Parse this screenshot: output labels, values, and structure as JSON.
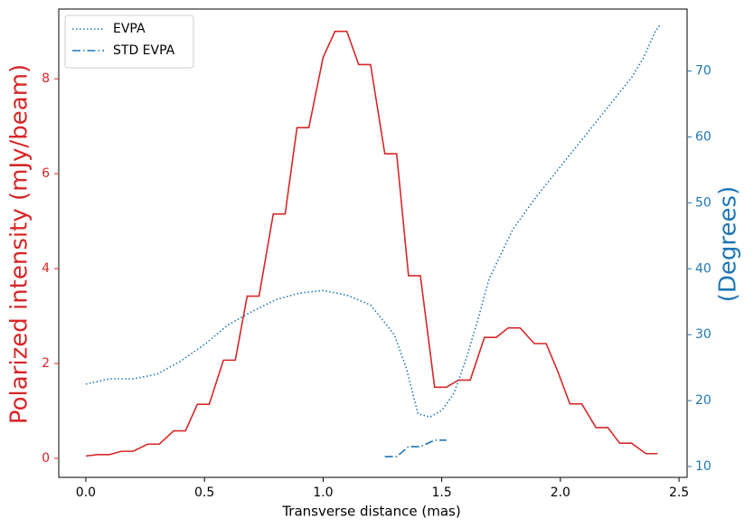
{
  "chart_data": {
    "type": "line",
    "xlabel": "Transverse distance (mas)",
    "ylabel": "Polarized intensity (mJy/beam)",
    "y2label": "(Degrees)",
    "ylabel_color": "#d62728",
    "y2label_color": "#1f77b4",
    "xlim": [
      -0.114,
      2.534
    ],
    "xticks": [
      {
        "value": 0,
        "label": "0.0"
      },
      0.5,
      {
        "value": 1,
        "label": "1.0"
      },
      1.5,
      {
        "value": 2,
        "label": "2.0"
      },
      2.5
    ],
    "ylim": [
      -0.4,
      9.47
    ],
    "yticks": [
      0,
      2,
      4,
      6,
      8
    ],
    "y2lim": [
      8.35,
      79.4
    ],
    "y2ticks": [
      10,
      20,
      30,
      40,
      50,
      60,
      70
    ],
    "legend": "upper left",
    "series": [
      {
        "color": "#d62728",
        "linestyle": "solid",
        "x": [
          0,
          0.05,
          0.1,
          0.15,
          0.2,
          0.26,
          0.31,
          0.37,
          0.42,
          0.47,
          0.52,
          0.58,
          0.63,
          0.68,
          0.73,
          0.79,
          0.84,
          0.89,
          0.94,
          1.0,
          1.05,
          1.1,
          1.15,
          1.2,
          1.26,
          1.31,
          1.36,
          1.41,
          1.47,
          1.52,
          1.57,
          1.62,
          1.68,
          1.73,
          1.78,
          1.83,
          1.89,
          1.94,
          1.99,
          2.04,
          2.09,
          2.15,
          2.2,
          2.25,
          2.3,
          2.36,
          2.41
        ],
        "values": [
          0.05,
          0.08,
          0.08,
          0.15,
          0.15,
          0.3,
          0.3,
          0.58,
          0.58,
          1.14,
          1.14,
          2.07,
          2.07,
          3.42,
          3.42,
          5.15,
          5.15,
          6.97,
          6.97,
          8.45,
          9.0,
          9.0,
          8.3,
          8.3,
          6.42,
          6.42,
          3.85,
          3.85,
          1.5,
          1.5,
          1.65,
          1.65,
          2.55,
          2.55,
          2.75,
          2.75,
          2.42,
          2.42,
          1.82,
          1.15,
          1.15,
          0.65,
          0.65,
          0.32,
          0.32,
          0.1,
          0.1
        ]
      },
      {
        "name": "EVPA",
        "color": "#1f77b4",
        "linestyle": "dotted",
        "axis": "y2",
        "x": [
          0,
          0.1,
          0.2,
          0.3,
          0.4,
          0.5,
          0.6,
          0.7,
          0.8,
          0.9,
          1.0,
          1.1,
          1.2,
          1.3,
          1.35,
          1.4,
          1.45,
          1.5,
          1.55,
          1.6,
          1.65,
          1.7,
          1.8,
          1.9,
          2.0,
          2.1,
          2.2,
          2.3,
          2.35,
          2.4,
          2.42
        ],
        "values": [
          22.5,
          23.3,
          23.3,
          24,
          26,
          28.5,
          31.5,
          33.5,
          35.3,
          36.3,
          36.7,
          36,
          34.5,
          30,
          25,
          18,
          17.5,
          18.5,
          21,
          26,
          32,
          38.5,
          46,
          51,
          55.5,
          60,
          64.5,
          69,
          72,
          76,
          77
        ]
      },
      {
        "name": "STD EVPA",
        "color": "#1f77b4",
        "linestyle": "dashdot",
        "axis": "y2",
        "x": [
          1.26,
          1.31,
          1.36,
          1.41,
          1.47,
          1.52
        ],
        "values": [
          11.5,
          11.5,
          13,
          13,
          14,
          14
        ]
      }
    ]
  }
}
